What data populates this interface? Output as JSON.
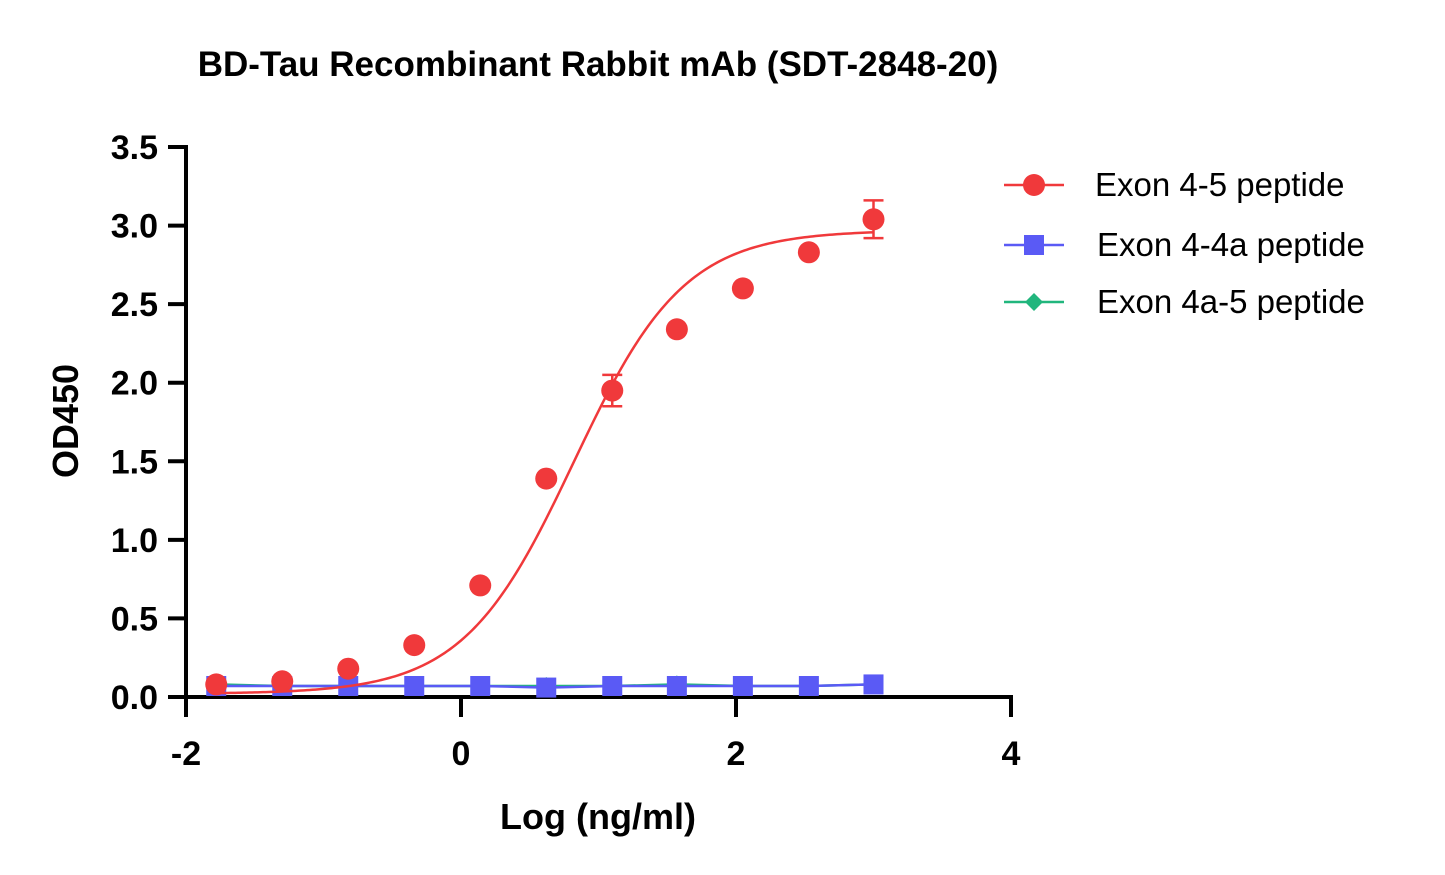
{
  "chart_data": {
    "type": "scatter",
    "title": "BD-Tau Recombinant Rabbit mAb (SDT-2848-20)",
    "xlabel": "Log (ng/ml)",
    "ylabel": "OD450",
    "xlim": [
      -2,
      4
    ],
    "ylim": [
      0,
      3.5
    ],
    "xticks": [
      -2,
      0,
      2,
      4
    ],
    "xtick_labels": [
      "-2",
      "0",
      "2",
      "4"
    ],
    "yticks": [
      0,
      0.5,
      1,
      1.5,
      2,
      2.5,
      3,
      3.5
    ],
    "ytick_labels": [
      "0.0",
      "0.5",
      "1.0",
      "1.5",
      "2.0",
      "2.5",
      "3.0",
      "3.5"
    ],
    "grid": false,
    "legend_position": "top-right",
    "series": [
      {
        "name": "Exon 4-5 peptide",
        "color": "#f0393b",
        "marker": "circle",
        "fit": "sigmoid",
        "x": [
          -1.78,
          -1.3,
          -0.82,
          -0.34,
          0.14,
          0.62,
          1.1,
          1.57,
          2.05,
          2.53,
          3.0
        ],
        "y": [
          0.08,
          0.1,
          0.18,
          0.33,
          0.71,
          1.39,
          1.95,
          2.34,
          2.6,
          2.83,
          3.04
        ],
        "err": [
          0,
          0,
          0,
          0,
          0,
          0,
          0.1,
          0,
          0,
          0,
          0.12
        ]
      },
      {
        "name": "Exon 4-4a peptide",
        "color": "#5a5af5",
        "marker": "square",
        "fit": "line",
        "x": [
          -1.78,
          -1.3,
          -0.82,
          -0.34,
          0.14,
          0.62,
          1.1,
          1.57,
          2.05,
          2.53,
          3.0
        ],
        "y": [
          0.07,
          0.07,
          0.07,
          0.07,
          0.07,
          0.06,
          0.07,
          0.07,
          0.07,
          0.07,
          0.08
        ],
        "err": [
          0,
          0,
          0,
          0,
          0,
          0,
          0,
          0,
          0,
          0,
          0
        ]
      },
      {
        "name": "Exon 4a-5 peptide",
        "color": "#21b67d",
        "marker": "diamond",
        "fit": "line",
        "x": [
          -1.78,
          -1.3,
          -0.82,
          -0.34,
          0.14,
          0.62,
          1.1,
          1.57,
          2.05,
          2.53,
          3.0
        ],
        "y": [
          0.08,
          0.07,
          0.07,
          0.07,
          0.07,
          0.07,
          0.07,
          0.08,
          0.07,
          0.07,
          0.08
        ],
        "err": [
          0,
          0,
          0,
          0,
          0,
          0,
          0,
          0,
          0,
          0,
          0
        ]
      }
    ]
  }
}
